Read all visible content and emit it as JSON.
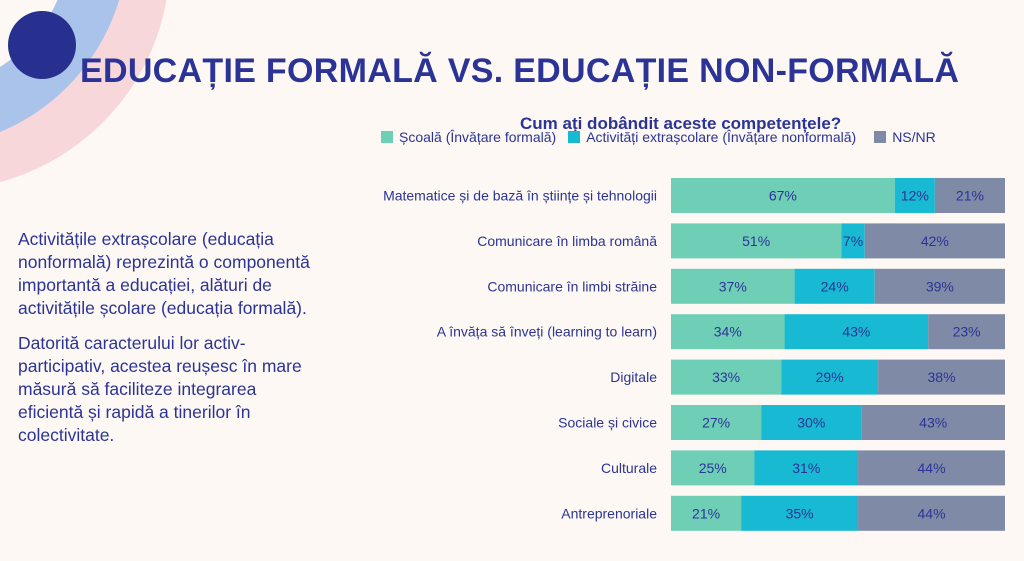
{
  "slide": {
    "title": "EDUCAȚIE FORMALĂ VS. EDUCAȚIE NON-FORMALĂ",
    "paragraphs": [
      "Activitățile extrașcolare (educația nonformală) reprezintă o componentă importantă a educației, alături de activitățile școlare (educația formală).",
      "Datorită caracterului lor activ-participativ, acestea reușesc în mare măsură să faciliteze integrarea eficientă și rapidă a tinerilor în colectivitate."
    ],
    "colors": {
      "title_text": "#2b3496",
      "background": "#fdf8f3",
      "deco_pink": "#f7d7d9",
      "deco_blue": "#a9c3ea",
      "deco_circle": "#27308f"
    }
  },
  "chart_data": {
    "type": "bar",
    "orientation": "horizontal",
    "stacked": true,
    "title": "Cum ați dobândit aceste competențele?",
    "legend_position": "top",
    "unit": "%",
    "categories": [
      "Matematice și de bază în științe și tehnologii",
      "Comunicare în limba română",
      "Comunicare în limbi străine",
      "A învăța să înveți (learning to learn)",
      "Digitale",
      "Sociale și civice",
      "Culturale",
      "Antreprenoriale"
    ],
    "series": [
      {
        "name": "Școală (Învățare formală)",
        "color": "#6fcfb6",
        "values": [
          67,
          51,
          37,
          34,
          33,
          27,
          25,
          21
        ]
      },
      {
        "name": "Activități extrașcolare (Învățare nonformală)",
        "color": "#18b9d2",
        "values": [
          12,
          7,
          24,
          43,
          29,
          30,
          31,
          35
        ]
      },
      {
        "name": "NS/NR",
        "color": "#7f8aa6",
        "values": [
          21,
          42,
          39,
          23,
          38,
          43,
          44,
          44
        ]
      }
    ]
  }
}
